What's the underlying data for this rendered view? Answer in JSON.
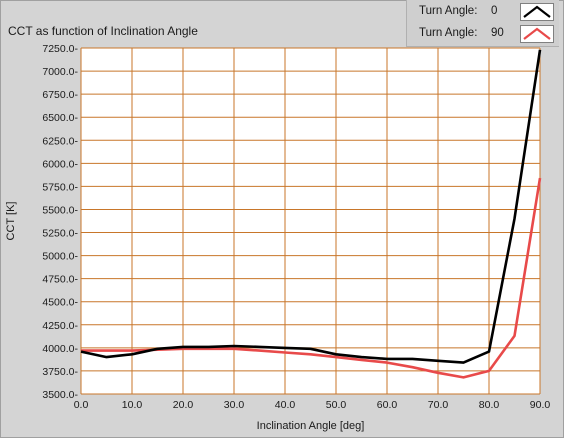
{
  "chart_title": "CCT as function of Inclination Angle",
  "legend": [
    {
      "label": "Turn Angle:",
      "value": "0",
      "color": "#000000"
    },
    {
      "label": "Turn Angle:",
      "value": "90",
      "color": "#e84a4a"
    }
  ],
  "colors": {
    "plot_background": "#ffffff",
    "grid": "#c8762a",
    "frame": "#d4d4d4"
  },
  "chart_data": {
    "type": "line",
    "title": "CCT as function of Inclination Angle",
    "xlabel": "Inclination Angle [deg]",
    "ylabel": "CCT [K]",
    "xlim": [
      0,
      90
    ],
    "ylim": [
      3500,
      7250
    ],
    "grid": true,
    "legend_position": "top-right",
    "x_ticks": [
      "0.0",
      "10.0",
      "20.0",
      "30.0",
      "40.0",
      "50.0",
      "60.0",
      "70.0",
      "80.0",
      "90.0"
    ],
    "y_ticks": [
      "3500.0-",
      "3750.0-",
      "4000.0-",
      "4250.0-",
      "4500.0-",
      "4750.0-",
      "5000.0-",
      "5250.0-",
      "5500.0-",
      "5750.0-",
      "6000.0-",
      "6250.0-",
      "6500.0-",
      "6750.0-",
      "7000.0-",
      "7250.0-"
    ],
    "x": [
      0,
      5,
      10,
      15,
      20,
      25,
      30,
      35,
      40,
      45,
      50,
      55,
      60,
      65,
      70,
      75,
      80,
      85,
      90
    ],
    "series": [
      {
        "name": "Turn Angle: 0",
        "color": "#000000",
        "values": [
          3960,
          3900,
          3930,
          3990,
          4010,
          4010,
          4020,
          4010,
          4000,
          3990,
          3930,
          3900,
          3880,
          3880,
          3860,
          3840,
          3960,
          5400,
          7230
        ]
      },
      {
        "name": "Turn Angle: 90",
        "color": "#e84a4a",
        "values": [
          3970,
          3970,
          3970,
          3980,
          3990,
          3990,
          3990,
          3970,
          3950,
          3930,
          3900,
          3870,
          3840,
          3790,
          3730,
          3680,
          3750,
          4130,
          5840
        ]
      }
    ]
  }
}
